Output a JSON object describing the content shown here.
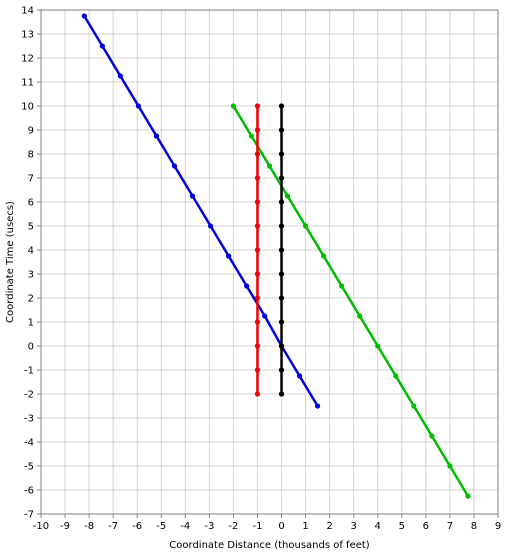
{
  "chart_data": {
    "type": "line",
    "title": "",
    "xlabel": "Coordinate Distance (thousands of feet)",
    "ylabel": "Coordinate Time (usecs)",
    "xlim": [
      -10,
      9
    ],
    "ylim": [
      -7,
      14
    ],
    "xticks": [
      -10,
      -9,
      -8,
      -7,
      -6,
      -5,
      -4,
      -3,
      -2,
      -1,
      0,
      1,
      2,
      3,
      4,
      5,
      6,
      7,
      8,
      9
    ],
    "yticks": [
      -7,
      -6,
      -5,
      -4,
      -3,
      -2,
      -1,
      0,
      1,
      2,
      3,
      4,
      5,
      6,
      7,
      8,
      9,
      10,
      11,
      12,
      13,
      14
    ],
    "grid": true,
    "legend": "none",
    "series": [
      {
        "color": "#0000dd",
        "x": [
          -8.2,
          -7.45,
          -6.7,
          -5.95,
          -5.2,
          -4.45,
          -3.7,
          -2.95,
          -2.2,
          -1.45,
          -0.7,
          0,
          0.75,
          1.5
        ],
        "y": [
          13.75,
          12.5,
          11.25,
          10,
          8.75,
          7.5,
          6.25,
          5,
          3.75,
          2.5,
          1.25,
          0,
          -1.25,
          -2.5
        ]
      },
      {
        "color": "#00bb00",
        "x": [
          -2,
          -1.25,
          -0.5,
          0.25,
          1,
          1.75,
          2.5,
          3.25,
          4,
          4.75,
          5.5,
          6.25,
          7,
          7.75
        ],
        "y": [
          10,
          8.75,
          7.5,
          6.25,
          5,
          3.75,
          2.5,
          1.25,
          0,
          -1.25,
          -2.5,
          -3.75,
          -5,
          -6.25
        ]
      },
      {
        "color": "#ee0000",
        "x": [
          -1,
          -1,
          -1,
          -1,
          -1,
          -1,
          -1,
          -1,
          -1,
          -1,
          -1,
          -1,
          -1
        ],
        "y": [
          10,
          9,
          8,
          7,
          6,
          5,
          4,
          3,
          2,
          1,
          0,
          -1,
          -2
        ]
      },
      {
        "color": "#000000",
        "x": [
          0,
          0,
          0,
          0,
          0,
          0,
          0,
          0,
          0,
          0,
          0,
          0,
          0
        ],
        "y": [
          10,
          9,
          8,
          7,
          6,
          5,
          4,
          3,
          2,
          1,
          0,
          -1,
          -2
        ]
      }
    ]
  }
}
